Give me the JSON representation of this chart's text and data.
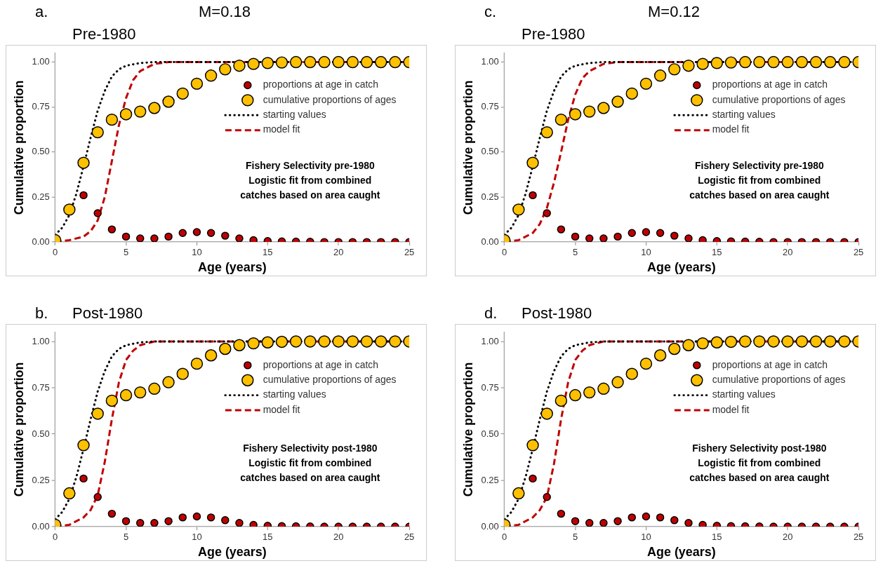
{
  "chart_data": [
    {
      "type": "scatter",
      "title": "M=0.18",
      "subtitle": "Pre-1980",
      "xlabel": "Age (years)",
      "ylabel": "Cumulative proportion",
      "annotations": [
        "a.",
        "Fishery Selectivity pre-1980\nLogistic fit from combined\ncatches based on area caught"
      ],
      "x": [
        0,
        1,
        2,
        3,
        4,
        5,
        6,
        7,
        8,
        9,
        10,
        11,
        12,
        13,
        14,
        15,
        16,
        17,
        18,
        19,
        20,
        21,
        22,
        23,
        24,
        25
      ],
      "series": [
        {
          "name": "proportions at age in catch",
          "color": "#c00000",
          "marker": "circle",
          "values": [
            null,
            null,
            0.26,
            0.16,
            0.07,
            0.03,
            0.02,
            0.02,
            0.03,
            0.05,
            0.055,
            0.05,
            0.035,
            0.02,
            0.01,
            0.005,
            0.003,
            0.002,
            0.001,
            0,
            0,
            0,
            0,
            0,
            0,
            0
          ]
        },
        {
          "name": "cumulative proportions of ages",
          "color": "#ffc000",
          "marker": "circle",
          "values": [
            0.01,
            0.18,
            0.44,
            0.61,
            0.68,
            0.71,
            0.725,
            0.745,
            0.78,
            0.825,
            0.88,
            0.925,
            0.96,
            0.98,
            0.99,
            0.995,
            0.998,
            1,
            1,
            1,
            1,
            1,
            1,
            1,
            1,
            1
          ]
        },
        {
          "name": "starting values",
          "type": "line",
          "color": "#000000",
          "line_style": "dotted",
          "marker": "none",
          "x": [
            0,
            0.5,
            1,
            1.5,
            2,
            2.5,
            3,
            3.5,
            4,
            4.5,
            5,
            6,
            7,
            25
          ],
          "values": [
            0.04,
            0.08,
            0.15,
            0.27,
            0.42,
            0.58,
            0.73,
            0.84,
            0.92,
            0.96,
            0.98,
            0.995,
            1,
            1
          ]
        },
        {
          "name": "model fit",
          "type": "line",
          "color": "#c00000",
          "line_style": "dashed",
          "marker": "none",
          "x": [
            0,
            1,
            2,
            2.5,
            3,
            3.5,
            4,
            4.5,
            5,
            5.5,
            6,
            7,
            8,
            25
          ],
          "values": [
            0,
            0.01,
            0.03,
            0.06,
            0.12,
            0.25,
            0.45,
            0.65,
            0.8,
            0.9,
            0.95,
            0.99,
            1,
            1
          ]
        }
      ],
      "xlim": [
        0,
        25
      ],
      "xticks": [
        0,
        5,
        10,
        15,
        20,
        25
      ],
      "ylim": [
        0,
        1.05
      ],
      "yticks": [
        {
          "value": 0,
          "label": "0.00"
        },
        {
          "value": 0.25,
          "label": "0.25"
        },
        {
          "value": 0.5,
          "label": "0.50"
        },
        {
          "value": 0.75,
          "label": "0.75"
        },
        {
          "value": 1,
          "label": "1.00"
        }
      ],
      "grid": false,
      "legend": "top right"
    },
    {
      "type": "scatter",
      "subtitle": "Post-1980",
      "xlabel": "Age (years)",
      "ylabel": "Cumulative proportion",
      "annotations": [
        "b.",
        "Fishery Selectivity post-1980\nLogistic fit from combined\ncatches based on area caught"
      ],
      "x": [
        0,
        1,
        2,
        3,
        4,
        5,
        6,
        7,
        8,
        9,
        10,
        11,
        12,
        13,
        14,
        15,
        16,
        17,
        18,
        19,
        20,
        21,
        22,
        23,
        24,
        25
      ],
      "series": [
        {
          "name": "proportions at age in catch",
          "color": "#c00000",
          "marker": "circle",
          "values": [
            null,
            null,
            0.26,
            0.16,
            0.07,
            0.03,
            0.02,
            0.02,
            0.03,
            0.05,
            0.055,
            0.05,
            0.035,
            0.02,
            0.01,
            0.005,
            0.003,
            0.002,
            0.001,
            0,
            0,
            0,
            0,
            0,
            0,
            0
          ]
        },
        {
          "name": "cumulative proportions of ages",
          "color": "#ffc000",
          "marker": "circle",
          "values": [
            0.01,
            0.18,
            0.44,
            0.61,
            0.68,
            0.71,
            0.725,
            0.745,
            0.78,
            0.825,
            0.88,
            0.925,
            0.96,
            0.98,
            0.99,
            0.995,
            0.998,
            1,
            1,
            1,
            1,
            1,
            1,
            1,
            1,
            1
          ]
        },
        {
          "name": "starting values",
          "type": "line",
          "color": "#000000",
          "line_style": "dotted",
          "marker": "none",
          "x": [
            0,
            0.5,
            1,
            1.5,
            2,
            2.5,
            3,
            3.5,
            4,
            4.5,
            5,
            6,
            7,
            25
          ],
          "values": [
            0.04,
            0.08,
            0.15,
            0.27,
            0.42,
            0.58,
            0.73,
            0.84,
            0.92,
            0.96,
            0.98,
            0.995,
            1,
            1
          ]
        },
        {
          "name": "model fit",
          "type": "line",
          "color": "#c00000",
          "line_style": "dashed",
          "marker": "none",
          "x": [
            0,
            1,
            2,
            2.5,
            3,
            3.5,
            4,
            4.5,
            5,
            5.5,
            6,
            7,
            25
          ],
          "values": [
            0,
            0.01,
            0.05,
            0.09,
            0.17,
            0.35,
            0.58,
            0.78,
            0.9,
            0.95,
            0.98,
            1,
            1
          ]
        }
      ],
      "xlim": [
        0,
        25
      ],
      "xticks": [
        0,
        5,
        10,
        15,
        20,
        25
      ],
      "ylim": [
        0,
        1.05
      ],
      "yticks": [
        {
          "value": 0,
          "label": "0.00"
        },
        {
          "value": 0.25,
          "label": "0.25"
        },
        {
          "value": 0.5,
          "label": "0.50"
        },
        {
          "value": 0.75,
          "label": "0.75"
        },
        {
          "value": 1,
          "label": "1.00"
        }
      ],
      "grid": false,
      "legend": "top right"
    },
    {
      "type": "scatter",
      "title": "M=0.12",
      "subtitle": "Pre-1980",
      "xlabel": "Age (years)",
      "ylabel": "Cumulative proportion",
      "annotations": [
        "c.",
        "Fishery Selectivity pre-1980\nLogistic fit from combined\ncatches based on area caught"
      ],
      "x": [
        0,
        1,
        2,
        3,
        4,
        5,
        6,
        7,
        8,
        9,
        10,
        11,
        12,
        13,
        14,
        15,
        16,
        17,
        18,
        19,
        20,
        21,
        22,
        23,
        24,
        25
      ],
      "series": [
        {
          "name": "proportions at age in catch",
          "color": "#c00000",
          "marker": "circle",
          "values": [
            null,
            null,
            0.26,
            0.16,
            0.07,
            0.03,
            0.02,
            0.02,
            0.03,
            0.05,
            0.055,
            0.05,
            0.035,
            0.02,
            0.01,
            0.005,
            0.003,
            0.002,
            0.001,
            0,
            0,
            0,
            0,
            0,
            0,
            0
          ]
        },
        {
          "name": "cumulative proportions of ages",
          "color": "#ffc000",
          "marker": "circle",
          "values": [
            0.01,
            0.18,
            0.44,
            0.61,
            0.68,
            0.71,
            0.725,
            0.745,
            0.78,
            0.825,
            0.88,
            0.925,
            0.96,
            0.98,
            0.99,
            0.995,
            0.998,
            1,
            1,
            1,
            1,
            1,
            1,
            1,
            1,
            1
          ]
        },
        {
          "name": "starting values",
          "type": "line",
          "color": "#000000",
          "line_style": "dotted",
          "marker": "none",
          "x": [
            0,
            0.5,
            1,
            1.5,
            2,
            2.5,
            3,
            3.5,
            4,
            4.5,
            5,
            6,
            7,
            25
          ],
          "values": [
            0.04,
            0.08,
            0.15,
            0.27,
            0.42,
            0.58,
            0.73,
            0.84,
            0.92,
            0.96,
            0.98,
            0.995,
            1,
            1
          ]
        },
        {
          "name": "model fit",
          "type": "line",
          "color": "#c00000",
          "line_style": "dashed",
          "marker": "none",
          "x": [
            0,
            1,
            2,
            2.5,
            3,
            3.5,
            4,
            4.5,
            5,
            5.5,
            6,
            7,
            8,
            25
          ],
          "values": [
            0,
            0.01,
            0.05,
            0.1,
            0.19,
            0.33,
            0.5,
            0.68,
            0.82,
            0.91,
            0.95,
            0.99,
            1,
            1
          ]
        }
      ],
      "xlim": [
        0,
        25
      ],
      "xticks": [
        0,
        5,
        10,
        15,
        20,
        25
      ],
      "ylim": [
        0,
        1.05
      ],
      "yticks": [
        {
          "value": 0,
          "label": "0.00"
        },
        {
          "value": 0.25,
          "label": "0.25"
        },
        {
          "value": 0.5,
          "label": "0.50"
        },
        {
          "value": 0.75,
          "label": "0.75"
        },
        {
          "value": 1,
          "label": "1.00"
        }
      ],
      "grid": false,
      "legend": "top right"
    },
    {
      "type": "scatter",
      "subtitle": "Post-1980",
      "xlabel": "Age (years)",
      "ylabel": "Cumulative proportion",
      "annotations": [
        "d.",
        "Fishery Selectivity post-1980\nLogistic fit from combined\ncatches based on area caught"
      ],
      "x": [
        0,
        1,
        2,
        3,
        4,
        5,
        6,
        7,
        8,
        9,
        10,
        11,
        12,
        13,
        14,
        15,
        16,
        17,
        18,
        19,
        20,
        21,
        22,
        23,
        24,
        25
      ],
      "series": [
        {
          "name": "proportions at age in catch",
          "color": "#c00000",
          "marker": "circle",
          "values": [
            null,
            null,
            0.26,
            0.16,
            0.07,
            0.03,
            0.02,
            0.02,
            0.03,
            0.05,
            0.055,
            0.05,
            0.035,
            0.02,
            0.01,
            0.005,
            0.003,
            0.002,
            0.001,
            0,
            0,
            0,
            0,
            0,
            0,
            0
          ]
        },
        {
          "name": "cumulative proportions of ages",
          "color": "#ffc000",
          "marker": "circle",
          "values": [
            0.01,
            0.18,
            0.44,
            0.61,
            0.68,
            0.71,
            0.725,
            0.745,
            0.78,
            0.825,
            0.88,
            0.925,
            0.96,
            0.98,
            0.99,
            0.995,
            0.998,
            1,
            1,
            1,
            1,
            1,
            1,
            1,
            1,
            1
          ]
        },
        {
          "name": "starting values",
          "type": "line",
          "color": "#000000",
          "line_style": "dotted",
          "marker": "none",
          "x": [
            0,
            0.5,
            1,
            1.5,
            2,
            2.5,
            3,
            3.5,
            4,
            4.5,
            5,
            6,
            7,
            25
          ],
          "values": [
            0.04,
            0.08,
            0.15,
            0.27,
            0.42,
            0.58,
            0.73,
            0.84,
            0.92,
            0.96,
            0.98,
            0.995,
            1,
            1
          ]
        },
        {
          "name": "model fit",
          "type": "line",
          "color": "#c00000",
          "line_style": "dashed",
          "marker": "none",
          "x": [
            0,
            1,
            2,
            2.5,
            3,
            3.5,
            4,
            4.5,
            5,
            5.5,
            6,
            7,
            25
          ],
          "values": [
            0,
            0.01,
            0.05,
            0.09,
            0.16,
            0.34,
            0.58,
            0.78,
            0.9,
            0.95,
            0.98,
            1,
            1
          ]
        }
      ],
      "xlim": [
        0,
        25
      ],
      "xticks": [
        0,
        5,
        10,
        15,
        20,
        25
      ],
      "ylim": [
        0,
        1.05
      ],
      "yticks": [
        {
          "value": 0,
          "label": "0.00"
        },
        {
          "value": 0.25,
          "label": "0.25"
        },
        {
          "value": 0.5,
          "label": "0.50"
        },
        {
          "value": 0.75,
          "label": "0.75"
        },
        {
          "value": 1,
          "label": "1.00"
        }
      ],
      "grid": false,
      "legend": "top right"
    }
  ]
}
